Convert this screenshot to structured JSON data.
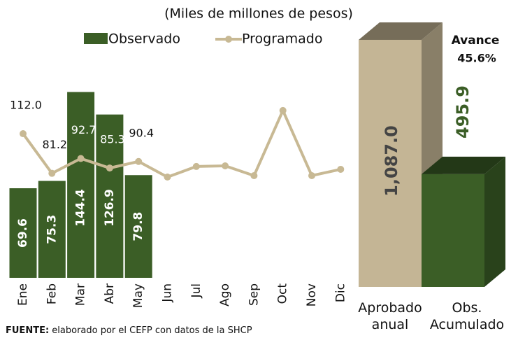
{
  "chart_data": [
    {
      "type": "bar_line",
      "subtitle": "(Miles de millones de pesos)",
      "categories": [
        "Ene",
        "Feb",
        "Mar",
        "Abr",
        "May",
        "Jun",
        "Jul",
        "Ago",
        "Sep",
        "Oct",
        "Nov",
        "Dic"
      ],
      "series": [
        {
          "name": "Observado",
          "type": "bar",
          "color": "#3b5e26",
          "values": [
            69.6,
            75.3,
            144.4,
            126.9,
            79.8,
            null,
            null,
            null,
            null,
            null,
            null,
            null
          ]
        },
        {
          "name": "Programado",
          "type": "line",
          "color": "#c8b994",
          "values": [
            112.0,
            81.2,
            92.7,
            85.3,
            90.4,
            78.3,
            86.5,
            87.0,
            79.4,
            130.0,
            79.4,
            84.3
          ],
          "value_labels": [
            "112.0",
            "81.2",
            "92.7",
            "85.3",
            "90.4",
            null,
            null,
            null,
            null,
            null,
            null,
            null
          ]
        }
      ],
      "source": {
        "label": "FUENTE:",
        "text": "elaborado por el CEFP con datos de la SHCP"
      }
    },
    {
      "type": "bar3d",
      "categories": [
        "Aprobado anual",
        "Obs. Acumulado"
      ],
      "values": [
        1087.0,
        495.9
      ],
      "value_labels": [
        "1,087.0",
        "495.9"
      ],
      "colors": [
        "#c4b595",
        "#3b5e26"
      ],
      "label_colors": [
        "#444444",
        "#3b5e26"
      ],
      "annotations": [
        "Avance",
        "45.6%"
      ]
    }
  ]
}
